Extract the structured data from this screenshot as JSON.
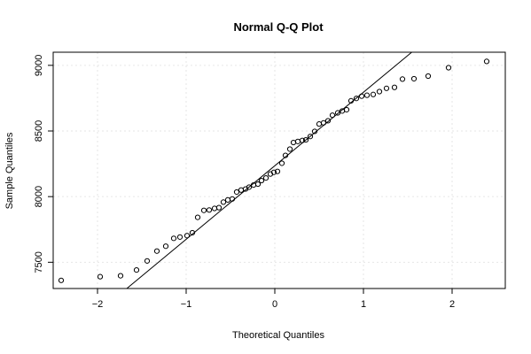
{
  "chart_data": {
    "type": "scatter",
    "title": "Normal Q-Q Plot",
    "xlabel": "Theoretical Quantiles",
    "ylabel": "Sample Quantiles",
    "xlim": [
      -2.5,
      2.6
    ],
    "ylim": [
      7300,
      9100
    ],
    "x_ticks": [
      -2,
      -1,
      0,
      1,
      2
    ],
    "x_tick_labels": [
      "−2",
      "−1",
      "0",
      "1",
      "2"
    ],
    "y_ticks": [
      7500,
      8000,
      8500,
      9000
    ],
    "y_tick_labels": [
      "7500",
      "8000",
      "8500",
      "9000"
    ],
    "grid": true,
    "reference_line": {
      "intercept": 8235,
      "slope": 560
    },
    "points": [
      {
        "x": -2.41,
        "y": 7362
      },
      {
        "x": -1.97,
        "y": 7390
      },
      {
        "x": -1.74,
        "y": 7397
      },
      {
        "x": -1.56,
        "y": 7441
      },
      {
        "x": -1.44,
        "y": 7510
      },
      {
        "x": -1.33,
        "y": 7585
      },
      {
        "x": -1.23,
        "y": 7622
      },
      {
        "x": -1.14,
        "y": 7682
      },
      {
        "x": -1.07,
        "y": 7692
      },
      {
        "x": -0.99,
        "y": 7703
      },
      {
        "x": -0.93,
        "y": 7725
      },
      {
        "x": -0.87,
        "y": 7842
      },
      {
        "x": -0.8,
        "y": 7895
      },
      {
        "x": -0.74,
        "y": 7898
      },
      {
        "x": -0.68,
        "y": 7910
      },
      {
        "x": -0.63,
        "y": 7916
      },
      {
        "x": -0.58,
        "y": 7958
      },
      {
        "x": -0.53,
        "y": 7975
      },
      {
        "x": -0.48,
        "y": 7982
      },
      {
        "x": -0.43,
        "y": 8035
      },
      {
        "x": -0.38,
        "y": 8050
      },
      {
        "x": -0.33,
        "y": 8058
      },
      {
        "x": -0.29,
        "y": 8072
      },
      {
        "x": -0.24,
        "y": 8088
      },
      {
        "x": -0.19,
        "y": 8095
      },
      {
        "x": -0.15,
        "y": 8122
      },
      {
        "x": -0.1,
        "y": 8142
      },
      {
        "x": -0.05,
        "y": 8172
      },
      {
        "x": -0.01,
        "y": 8185
      },
      {
        "x": 0.03,
        "y": 8192
      },
      {
        "x": 0.08,
        "y": 8254
      },
      {
        "x": 0.12,
        "y": 8314
      },
      {
        "x": 0.17,
        "y": 8362
      },
      {
        "x": 0.21,
        "y": 8412
      },
      {
        "x": 0.26,
        "y": 8420
      },
      {
        "x": 0.31,
        "y": 8428
      },
      {
        "x": 0.35,
        "y": 8432
      },
      {
        "x": 0.4,
        "y": 8458
      },
      {
        "x": 0.45,
        "y": 8497
      },
      {
        "x": 0.5,
        "y": 8553
      },
      {
        "x": 0.55,
        "y": 8562
      },
      {
        "x": 0.6,
        "y": 8578
      },
      {
        "x": 0.65,
        "y": 8620
      },
      {
        "x": 0.71,
        "y": 8638
      },
      {
        "x": 0.76,
        "y": 8652
      },
      {
        "x": 0.81,
        "y": 8662
      },
      {
        "x": 0.86,
        "y": 8730
      },
      {
        "x": 0.92,
        "y": 8748
      },
      {
        "x": 0.98,
        "y": 8765
      },
      {
        "x": 1.04,
        "y": 8772
      },
      {
        "x": 1.11,
        "y": 8778
      },
      {
        "x": 1.18,
        "y": 8800
      },
      {
        "x": 1.26,
        "y": 8825
      },
      {
        "x": 1.35,
        "y": 8832
      },
      {
        "x": 1.44,
        "y": 8895
      },
      {
        "x": 1.57,
        "y": 8898
      },
      {
        "x": 1.73,
        "y": 8918
      },
      {
        "x": 1.96,
        "y": 8982
      },
      {
        "x": 2.39,
        "y": 9030
      }
    ]
  }
}
